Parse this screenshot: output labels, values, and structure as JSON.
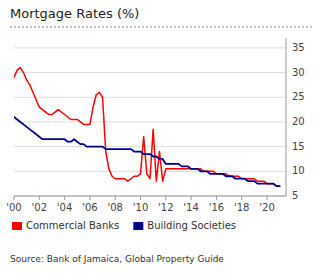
{
  "chart_data": {
    "type": "line",
    "title": "Mortgage Rates (%)",
    "source": "Source: Bank of Jamaica, Global Property Guide",
    "x": [
      2000.0,
      2000.25,
      2000.5,
      2000.75,
      2001.0,
      2001.25,
      2001.5,
      2001.75,
      2002.0,
      2002.25,
      2002.5,
      2002.75,
      2003.0,
      2003.25,
      2003.5,
      2003.75,
      2004.0,
      2004.25,
      2004.5,
      2004.75,
      2005.0,
      2005.25,
      2005.5,
      2005.75,
      2006.0,
      2006.25,
      2006.5,
      2006.75,
      2007.0,
      2007.25,
      2007.5,
      2007.75,
      2008.0,
      2008.25,
      2008.5,
      2008.75,
      2009.0,
      2009.25,
      2009.5,
      2009.75,
      2010.0,
      2010.25,
      2010.5,
      2010.75,
      2011.0,
      2011.25,
      2011.5,
      2011.75,
      2012.0,
      2012.25,
      2012.5,
      2012.75,
      2013.0,
      2013.25,
      2013.5,
      2013.75,
      2014.0,
      2014.25,
      2014.5,
      2014.75,
      2015.0,
      2015.25,
      2015.5,
      2015.75,
      2016.0,
      2016.25,
      2016.5,
      2016.75,
      2017.0,
      2017.25,
      2017.5,
      2017.75,
      2018.0,
      2018.25,
      2018.5,
      2018.75,
      2019.0,
      2019.25,
      2019.5,
      2019.75,
      2020.0,
      2020.25,
      2020.5,
      2020.75,
      2021.0
    ],
    "series": [
      {
        "name": "Commercial Banks",
        "color": "#ff0000",
        "values": [
          29.0,
          30.5,
          31.0,
          30.0,
          28.5,
          27.5,
          26.0,
          24.5,
          23.0,
          22.5,
          22.0,
          21.5,
          21.5,
          22.0,
          22.5,
          22.0,
          21.5,
          21.0,
          20.5,
          20.5,
          20.5,
          20.0,
          19.5,
          19.5,
          19.5,
          23.0,
          25.5,
          26.0,
          25.0,
          14.0,
          10.5,
          9.0,
          8.5,
          8.5,
          8.5,
          8.5,
          8.0,
          8.5,
          9.0,
          9.0,
          9.5,
          17.0,
          9.5,
          8.5,
          18.5,
          8.0,
          14.0,
          8.0,
          10.5,
          10.5,
          10.5,
          10.5,
          10.5,
          10.5,
          10.5,
          10.5,
          10.5,
          10.5,
          10.5,
          10.5,
          10.0,
          10.0,
          10.0,
          10.0,
          9.5,
          9.5,
          9.5,
          9.5,
          9.0,
          9.0,
          9.0,
          9.0,
          8.5,
          8.5,
          8.5,
          8.5,
          8.5,
          8.0,
          8.0,
          8.0,
          7.5,
          7.5,
          7.5,
          7.0,
          7.0
        ]
      },
      {
        "name": "Building Societies",
        "color": "#00008b",
        "values": [
          21.0,
          20.5,
          20.0,
          19.5,
          19.0,
          18.5,
          18.0,
          17.5,
          17.0,
          16.5,
          16.5,
          16.5,
          16.5,
          16.5,
          16.5,
          16.5,
          16.5,
          16.0,
          16.0,
          16.5,
          16.0,
          15.5,
          15.5,
          15.0,
          15.0,
          15.0,
          15.0,
          15.0,
          15.0,
          14.5,
          14.5,
          14.5,
          14.5,
          14.5,
          14.5,
          14.5,
          14.5,
          14.5,
          14.0,
          14.0,
          14.0,
          13.5,
          13.5,
          13.5,
          13.0,
          13.0,
          12.5,
          12.5,
          11.5,
          11.5,
          11.5,
          11.5,
          11.5,
          11.0,
          11.0,
          11.0,
          10.5,
          10.5,
          10.5,
          10.0,
          10.0,
          10.0,
          9.5,
          9.5,
          9.5,
          9.5,
          9.5,
          9.0,
          9.0,
          9.0,
          8.5,
          8.5,
          8.5,
          8.5,
          8.0,
          8.0,
          8.0,
          7.5,
          7.5,
          7.5,
          7.5,
          7.5,
          7.5,
          7.0,
          7.0
        ]
      }
    ],
    "xlim": [
      2000,
      2021.5
    ],
    "xticks": [
      {
        "value": 2000,
        "label": "'00"
      },
      {
        "value": 2002,
        "label": "'02"
      },
      {
        "value": 2004,
        "label": "'04"
      },
      {
        "value": 2006,
        "label": "'06"
      },
      {
        "value": 2008,
        "label": "'08"
      },
      {
        "value": 2010,
        "label": "'10"
      },
      {
        "value": 2012,
        "label": "'12"
      },
      {
        "value": 2014,
        "label": "'14"
      },
      {
        "value": 2016,
        "label": "'16"
      },
      {
        "value": 2018,
        "label": "'18"
      },
      {
        "value": 2020,
        "label": "'20"
      }
    ],
    "ylim": [
      5,
      37
    ],
    "yticks": [
      5,
      10,
      15,
      20,
      25,
      30,
      35
    ],
    "grid": "y",
    "legend": "bottom"
  }
}
